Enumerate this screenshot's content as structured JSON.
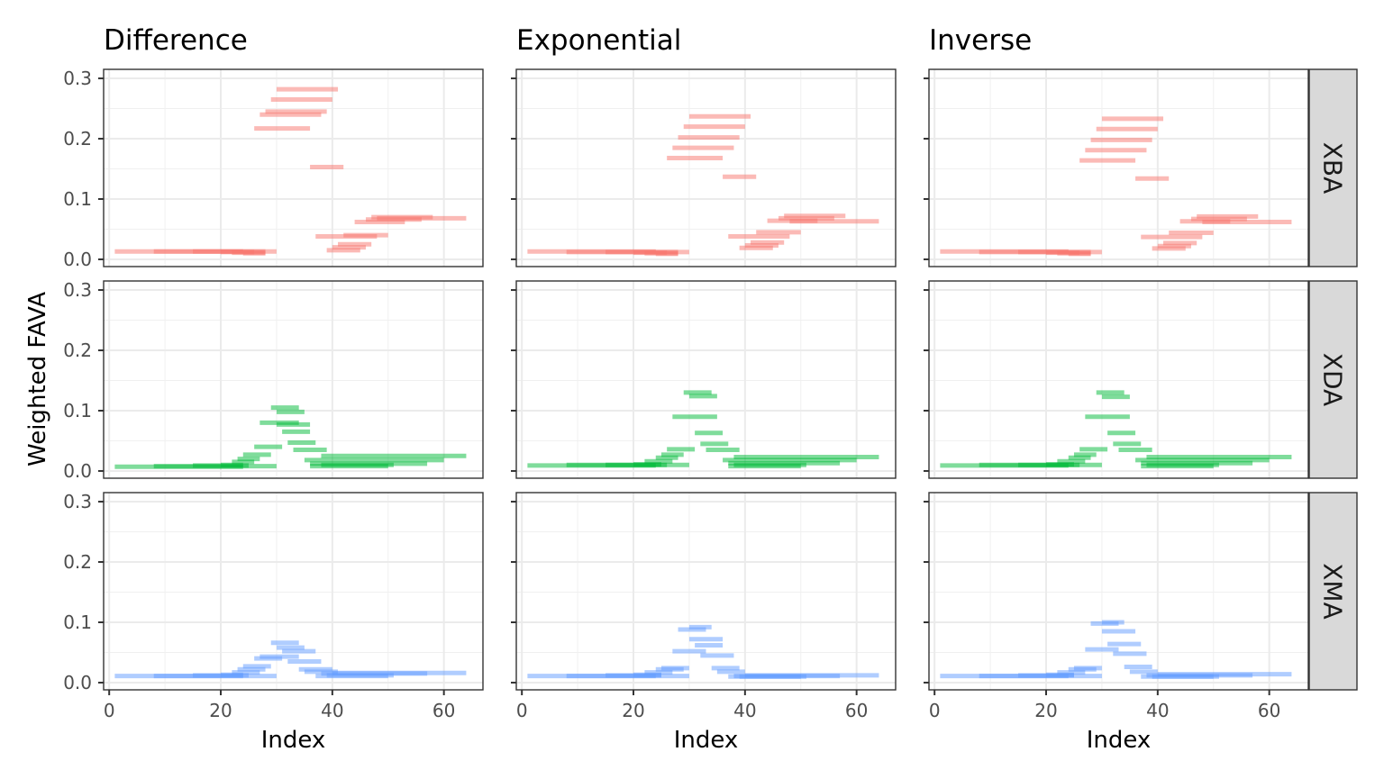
{
  "chart_data": {
    "type": "facet-segment",
    "ylabel": "Weighted FAVA",
    "xlabel": "Index",
    "xlim": [
      -1,
      67
    ],
    "ylim": [
      -0.012,
      0.315
    ],
    "x_ticks": [
      0,
      20,
      40,
      60
    ],
    "y_ticks": [
      0.0,
      0.1,
      0.2,
      0.3
    ],
    "y_tick_labels": [
      "0.0",
      "0.1",
      "0.2",
      "0.3"
    ],
    "columns": [
      "Difference",
      "Exponential",
      "Inverse"
    ],
    "rows": [
      {
        "name": "XBA",
        "color": "#F8766D"
      },
      {
        "name": "XDA",
        "color": "#00BA38"
      },
      {
        "name": "XMA",
        "color": "#619CFF"
      }
    ],
    "panels": {
      "XBA": {
        "Difference": [
          [
            1,
            24,
            0.013
          ],
          [
            8,
            30,
            0.013
          ],
          [
            15,
            28,
            0.013
          ],
          [
            20,
            26,
            0.012
          ],
          [
            22,
            28,
            0.011
          ],
          [
            24,
            28,
            0.01
          ],
          [
            30,
            41,
            0.282
          ],
          [
            29,
            40,
            0.265
          ],
          [
            28,
            39,
            0.245
          ],
          [
            27,
            38,
            0.24
          ],
          [
            26,
            36,
            0.217
          ],
          [
            36,
            42,
            0.153
          ],
          [
            48,
            64,
            0.068
          ],
          [
            47,
            58,
            0.07
          ],
          [
            46,
            56,
            0.066
          ],
          [
            44,
            53,
            0.062
          ],
          [
            42,
            50,
            0.04
          ],
          [
            37,
            48,
            0.038
          ],
          [
            41,
            47,
            0.025
          ],
          [
            40,
            46,
            0.02
          ],
          [
            39,
            45,
            0.015
          ]
        ],
        "Exponential": [
          [
            1,
            24,
            0.013
          ],
          [
            8,
            30,
            0.012
          ],
          [
            15,
            28,
            0.012
          ],
          [
            20,
            26,
            0.011
          ],
          [
            22,
            28,
            0.01
          ],
          [
            24,
            28,
            0.009
          ],
          [
            30,
            41,
            0.237
          ],
          [
            29,
            40,
            0.22
          ],
          [
            28,
            39,
            0.202
          ],
          [
            27,
            38,
            0.185
          ],
          [
            26,
            36,
            0.168
          ],
          [
            36,
            42,
            0.137
          ],
          [
            48,
            64,
            0.063
          ],
          [
            47,
            58,
            0.072
          ],
          [
            46,
            56,
            0.068
          ],
          [
            44,
            53,
            0.064
          ],
          [
            42,
            50,
            0.045
          ],
          [
            37,
            48,
            0.038
          ],
          [
            41,
            47,
            0.028
          ],
          [
            40,
            46,
            0.023
          ],
          [
            39,
            45,
            0.019
          ]
        ],
        "Inverse": [
          [
            1,
            24,
            0.013
          ],
          [
            8,
            30,
            0.012
          ],
          [
            15,
            28,
            0.012
          ],
          [
            20,
            26,
            0.011
          ],
          [
            22,
            28,
            0.01
          ],
          [
            24,
            28,
            0.009
          ],
          [
            30,
            41,
            0.233
          ],
          [
            29,
            40,
            0.216
          ],
          [
            28,
            39,
            0.198
          ],
          [
            27,
            38,
            0.181
          ],
          [
            26,
            36,
            0.164
          ],
          [
            36,
            42,
            0.134
          ],
          [
            48,
            64,
            0.062
          ],
          [
            47,
            58,
            0.071
          ],
          [
            46,
            56,
            0.067
          ],
          [
            44,
            53,
            0.063
          ],
          [
            42,
            50,
            0.044
          ],
          [
            37,
            48,
            0.037
          ],
          [
            41,
            47,
            0.027
          ],
          [
            40,
            46,
            0.022
          ],
          [
            39,
            45,
            0.018
          ]
        ]
      },
      "XDA": {
        "Difference": [
          [
            1,
            24,
            0.007
          ],
          [
            8,
            30,
            0.008
          ],
          [
            15,
            25,
            0.009
          ],
          [
            20,
            24,
            0.01
          ],
          [
            22,
            26,
            0.015
          ],
          [
            23,
            27,
            0.02
          ],
          [
            24,
            29,
            0.027
          ],
          [
            26,
            31,
            0.04
          ],
          [
            29,
            34,
            0.105
          ],
          [
            30,
            35,
            0.098
          ],
          [
            27,
            34,
            0.08
          ],
          [
            30,
            36,
            0.077
          ],
          [
            31,
            36,
            0.065
          ],
          [
            32,
            37,
            0.047
          ],
          [
            33,
            39,
            0.035
          ],
          [
            38,
            64,
            0.025
          ],
          [
            35,
            60,
            0.018
          ],
          [
            36,
            57,
            0.012
          ],
          [
            38,
            51,
            0.01
          ],
          [
            36,
            50,
            0.008
          ]
        ],
        "Exponential": [
          [
            1,
            24,
            0.009
          ],
          [
            8,
            30,
            0.01
          ],
          [
            15,
            26,
            0.01
          ],
          [
            20,
            25,
            0.011
          ],
          [
            22,
            27,
            0.016
          ],
          [
            24,
            28,
            0.022
          ],
          [
            25,
            29,
            0.027
          ],
          [
            26,
            31,
            0.036
          ],
          [
            29,
            34,
            0.13
          ],
          [
            30,
            35,
            0.124
          ],
          [
            27,
            35,
            0.09
          ],
          [
            31,
            36,
            0.063
          ],
          [
            32,
            37,
            0.045
          ],
          [
            33,
            39,
            0.035
          ],
          [
            38,
            64,
            0.023
          ],
          [
            36,
            60,
            0.018
          ],
          [
            37,
            57,
            0.013
          ],
          [
            38,
            51,
            0.01
          ],
          [
            37,
            50,
            0.008
          ]
        ],
        "Inverse": [
          [
            1,
            24,
            0.009
          ],
          [
            8,
            30,
            0.01
          ],
          [
            15,
            26,
            0.01
          ],
          [
            20,
            25,
            0.011
          ],
          [
            22,
            27,
            0.016
          ],
          [
            24,
            28,
            0.022
          ],
          [
            25,
            29,
            0.027
          ],
          [
            26,
            31,
            0.036
          ],
          [
            29,
            34,
            0.13
          ],
          [
            30,
            35,
            0.123
          ],
          [
            27,
            35,
            0.09
          ],
          [
            31,
            36,
            0.063
          ],
          [
            32,
            37,
            0.045
          ],
          [
            33,
            39,
            0.035
          ],
          [
            38,
            64,
            0.023
          ],
          [
            36,
            60,
            0.018
          ],
          [
            37,
            57,
            0.013
          ],
          [
            38,
            51,
            0.01
          ],
          [
            37,
            50,
            0.008
          ]
        ]
      },
      "XMA": {
        "Difference": [
          [
            1,
            24,
            0.011
          ],
          [
            8,
            30,
            0.011
          ],
          [
            15,
            25,
            0.012
          ],
          [
            20,
            24,
            0.013
          ],
          [
            22,
            27,
            0.017
          ],
          [
            23,
            28,
            0.022
          ],
          [
            24,
            29,
            0.027
          ],
          [
            26,
            31,
            0.04
          ],
          [
            29,
            34,
            0.066
          ],
          [
            30,
            35,
            0.058
          ],
          [
            31,
            37,
            0.052
          ],
          [
            27,
            34,
            0.043
          ],
          [
            32,
            38,
            0.035
          ],
          [
            34,
            40,
            0.022
          ],
          [
            35,
            41,
            0.018
          ],
          [
            40,
            64,
            0.016
          ],
          [
            38,
            57,
            0.015
          ],
          [
            39,
            51,
            0.012
          ],
          [
            37,
            50,
            0.011
          ]
        ],
        "Exponential": [
          [
            1,
            24,
            0.011
          ],
          [
            8,
            30,
            0.011
          ],
          [
            15,
            25,
            0.012
          ],
          [
            20,
            25,
            0.013
          ],
          [
            22,
            27,
            0.017
          ],
          [
            24,
            29,
            0.022
          ],
          [
            25,
            30,
            0.024
          ],
          [
            30,
            34,
            0.092
          ],
          [
            28,
            33,
            0.088
          ],
          [
            30,
            36,
            0.072
          ],
          [
            31,
            36,
            0.062
          ],
          [
            27,
            33,
            0.052
          ],
          [
            32,
            38,
            0.045
          ],
          [
            34,
            39,
            0.024
          ],
          [
            35,
            40,
            0.018
          ],
          [
            40,
            64,
            0.012
          ],
          [
            38,
            57,
            0.011
          ],
          [
            39,
            51,
            0.01
          ],
          [
            37,
            50,
            0.01
          ]
        ],
        "Inverse": [
          [
            1,
            24,
            0.011
          ],
          [
            8,
            30,
            0.011
          ],
          [
            15,
            25,
            0.012
          ],
          [
            20,
            25,
            0.013
          ],
          [
            22,
            27,
            0.017
          ],
          [
            24,
            29,
            0.022
          ],
          [
            25,
            30,
            0.024
          ],
          [
            30,
            34,
            0.1
          ],
          [
            28,
            33,
            0.098
          ],
          [
            30,
            36,
            0.085
          ],
          [
            31,
            37,
            0.064
          ],
          [
            27,
            33,
            0.055
          ],
          [
            32,
            38,
            0.048
          ],
          [
            34,
            39,
            0.026
          ],
          [
            35,
            40,
            0.018
          ],
          [
            40,
            64,
            0.014
          ],
          [
            38,
            57,
            0.012
          ],
          [
            39,
            51,
            0.01
          ],
          [
            37,
            50,
            0.01
          ]
        ]
      }
    }
  }
}
